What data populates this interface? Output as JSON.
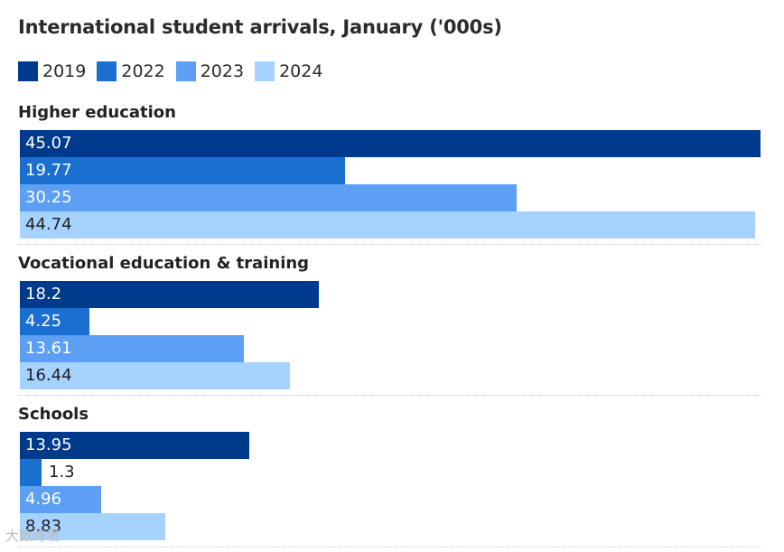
{
  "chart_data": {
    "type": "bar",
    "orientation": "horizontal",
    "title": "International student arrivals, January ('000s)",
    "legend_position": "top-left",
    "grid": false,
    "xlim": [
      0,
      45.07
    ],
    "series": [
      {
        "name": "2019",
        "color": "#003a8c"
      },
      {
        "name": "2022",
        "color": "#1a6fd1"
      },
      {
        "name": "2023",
        "color": "#5c9ff5"
      },
      {
        "name": "2024",
        "color": "#a6d2ff"
      }
    ],
    "groups": [
      {
        "name": "Higher education",
        "values": [
          45.07,
          19.77,
          30.25,
          44.74
        ],
        "labels": [
          "45.07",
          "19.77",
          "30.25",
          "44.74"
        ]
      },
      {
        "name": "Vocational education & training",
        "values": [
          18.2,
          4.25,
          13.61,
          16.44
        ],
        "labels": [
          "18.2",
          "4.25",
          "13.61",
          "16.44"
        ]
      },
      {
        "name": "Schools",
        "values": [
          13.95,
          1.3,
          4.96,
          8.83
        ],
        "labels": [
          "13.95",
          "1.3",
          "4.96",
          "8.83"
        ]
      }
    ]
  },
  "watermark": "大数跨境"
}
